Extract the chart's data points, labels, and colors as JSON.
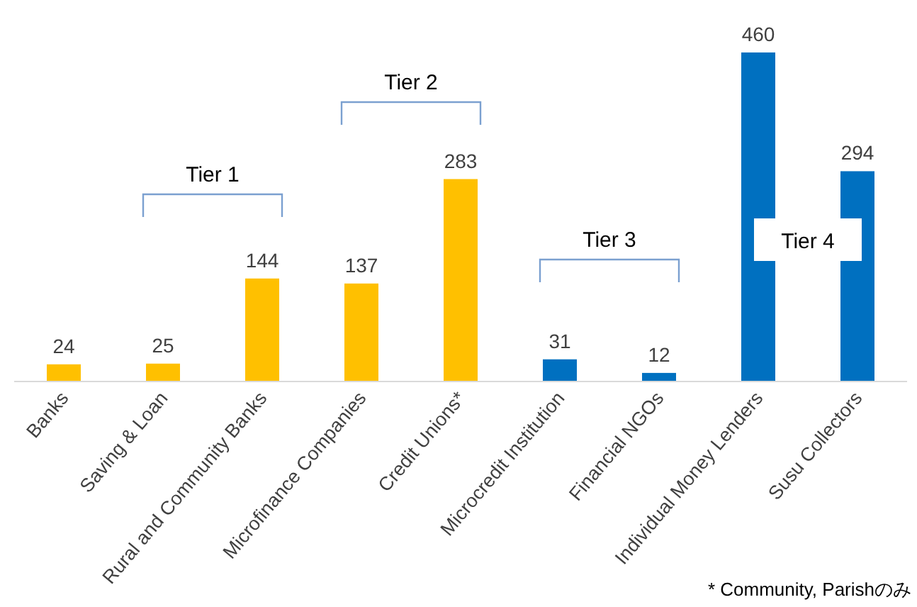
{
  "chart_data": {
    "type": "bar",
    "categories": [
      "Banks",
      "Saving & Loan",
      "Rural and Community Banks",
      "Microfinance Companies",
      "Credit Unions*",
      "Microcredit Institution",
      "Financial NGOs",
      "Individual Money Lenders",
      "Susu Collectors"
    ],
    "values": [
      24,
      25,
      144,
      137,
      283,
      31,
      12,
      460,
      294
    ],
    "colors": [
      "#ffc000",
      "#ffc000",
      "#ffc000",
      "#ffc000",
      "#ffc000",
      "#0070c0",
      "#0070c0",
      "#0070c0",
      "#0070c0"
    ],
    "data_labels": true,
    "annotations": [
      "Tier 1",
      "Tier 2",
      "Tier 3",
      "Tier 4",
      "* Community, Parishのみ"
    ]
  }
}
